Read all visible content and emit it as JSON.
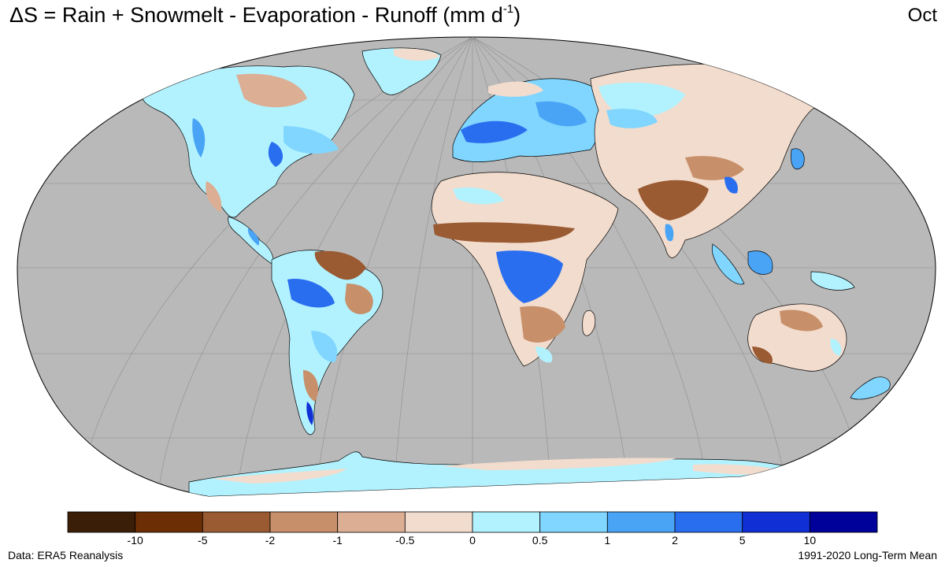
{
  "title": {
    "prefix": "ΔS = Rain + Snowmelt - Evaporation - Runoff (mm  d",
    "superscript": "-1",
    "suffix": ")"
  },
  "month": "Oct",
  "footer": {
    "source": "Data: ERA5 Reanalysis",
    "period": "1991-2020 Long-Term Mean"
  },
  "colorbar": {
    "colors": [
      "#3b1e08",
      "#6b2e05",
      "#9a5a32",
      "#c8906a",
      "#dcae94",
      "#f2dccd",
      "#b2f2ff",
      "#80d6ff",
      "#4aa4f5",
      "#2a6ef0",
      "#1030d6",
      "#00009a"
    ],
    "tick_labels": [
      "-10",
      "-5",
      "-2",
      "-1",
      "-0.5",
      "0",
      "0.5",
      "1",
      "2",
      "5",
      "10"
    ]
  },
  "map": {
    "projection": "Robinson",
    "ocean_color": "#b9b9b9",
    "graticule": "on"
  }
}
